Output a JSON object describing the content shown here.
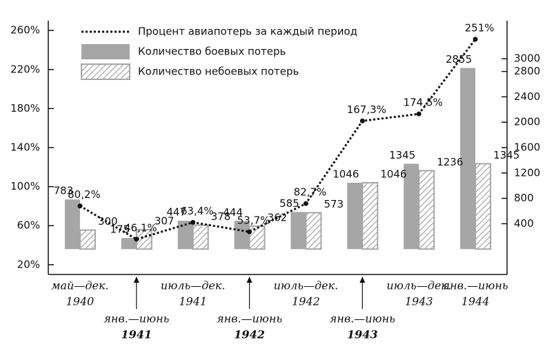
{
  "chart_data": {
    "type": "bar-line",
    "categories": [
      [
        "май—дек.",
        "1940"
      ],
      [
        "янв.—июнь",
        "1941"
      ],
      [
        "июль—дек.",
        "1941"
      ],
      [
        "янв.—июнь",
        "1942"
      ],
      [
        "июль—дек.",
        "1942"
      ],
      [
        "янв.—июнь",
        "1943"
      ],
      [
        "июль—дек.",
        "1943"
      ],
      [
        "янв.—июнь",
        "1944"
      ]
    ],
    "series": [
      {
        "name": "Процент авиапотерь за каждый период",
        "type": "line",
        "color": "#111111",
        "axis": "y",
        "values": [
          80.2,
          46.1,
          63.4,
          53.7,
          82.7,
          167.3,
          174.5,
          251
        ],
        "value_labels": [
          "80,2%",
          "46,1%",
          "63,4%",
          "53,7%",
          "82,7%",
          "167,3%",
          "174,5%",
          "251%"
        ]
      },
      {
        "name": "Количество боевых потерь",
        "type": "bar",
        "color": "#a6a6a6",
        "axis": "y2",
        "values": [
          783,
          175,
          447,
          444,
          585,
          1046,
          1345,
          2855
        ]
      },
      {
        "name": "Количество небоевых потерь",
        "type": "hatched-bar",
        "color": "#a6a6a6",
        "axis": "y2",
        "values": [
          300,
          307,
          378,
          362,
          573,
          1046,
          1236,
          1345
        ]
      }
    ],
    "ylim": [
      10,
      270
    ],
    "yticks": [
      {
        "value": 20,
        "label": "20%"
      },
      {
        "value": 60,
        "label": "60%"
      },
      {
        "value": 100,
        "label": "100%"
      },
      {
        "value": 140,
        "label": "140%"
      },
      {
        "value": 180,
        "label": "180%"
      },
      {
        "value": 220,
        "label": "220%"
      },
      {
        "value": 260,
        "label": "260%"
      }
    ],
    "y2lim": [
      -400,
      3600
    ],
    "y2ticks": [
      400,
      800,
      1200,
      1600,
      2000,
      2400,
      2800,
      3000
    ],
    "legend": "upper left"
  }
}
